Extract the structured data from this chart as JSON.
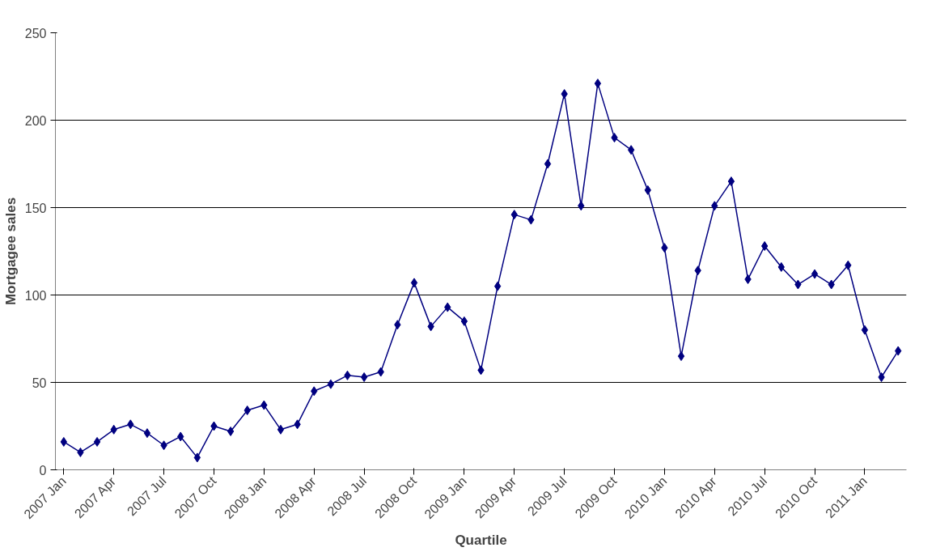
{
  "chart_data": {
    "type": "line",
    "xlabel": "Quartile",
    "ylabel": "Mortgagee sales",
    "categories": [
      "2007 Jan",
      null,
      null,
      "2007 Apr",
      null,
      null,
      "2007 Jul",
      null,
      null,
      "2007 Oct",
      null,
      null,
      "2008 Jan",
      null,
      null,
      "2008 Apr",
      null,
      null,
      "2008 Jul",
      null,
      null,
      "2008 Oct",
      null,
      null,
      "2009 Jan",
      null,
      null,
      "2009 Apr",
      null,
      null,
      "2009 Jul",
      null,
      null,
      "2009 Oct",
      null,
      null,
      "2010 Jan",
      null,
      null,
      "2010 Apr",
      null,
      null,
      "2010 Jul",
      null,
      null,
      "2010 Oct",
      null,
      null,
      "2011 Jan",
      null,
      null
    ],
    "series": [
      {
        "color": "#000080",
        "values": [
          16,
          10,
          16,
          23,
          26,
          21,
          14,
          19,
          7,
          25,
          22,
          34,
          37,
          23,
          26,
          45,
          49,
          54,
          53,
          56,
          83,
          107,
          82,
          93,
          85,
          57,
          105,
          146,
          143,
          175,
          215,
          151,
          221,
          190,
          183,
          160,
          127,
          65,
          114,
          151,
          165,
          109,
          128,
          116,
          106,
          112,
          106,
          117,
          80,
          53,
          68
        ]
      }
    ],
    "ylim": [
      0,
      250
    ],
    "yticks": [
      0,
      50,
      100,
      150,
      200,
      250
    ],
    "grid": "y",
    "marker": "diamond",
    "line_style": "solid"
  }
}
